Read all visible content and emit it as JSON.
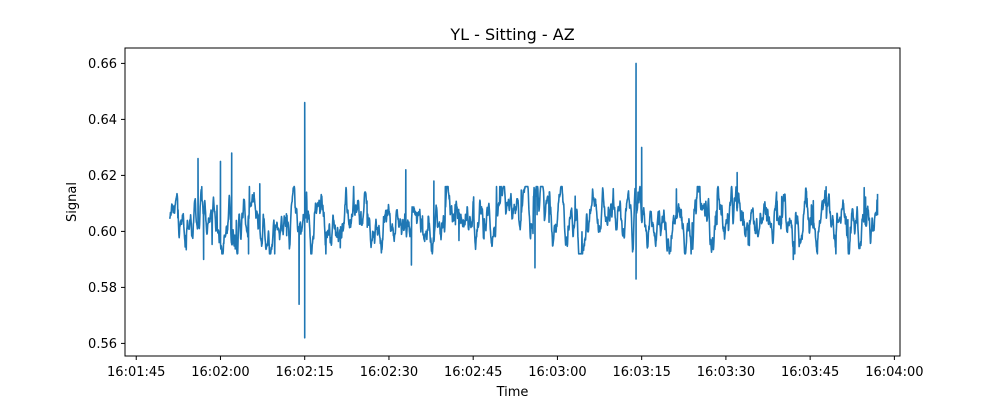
{
  "chart_data": {
    "type": "line",
    "title": "YL - Sitting - AZ",
    "xlabel": "Time",
    "ylabel": "Signal",
    "x_tick_labels": [
      "16:01:45",
      "16:02:00",
      "16:02:15",
      "16:02:30",
      "16:02:45",
      "16:03:00",
      "16:03:15",
      "16:03:30",
      "16:03:45",
      "16:04:00"
    ],
    "y_tick_labels": [
      "0.56",
      "0.58",
      "0.60",
      "0.62",
      "0.64",
      "0.66"
    ],
    "y_ticks": [
      0.56,
      0.58,
      0.6,
      0.62,
      0.64,
      0.66
    ],
    "xlim": [
      "16:01:43",
      "16:04:01"
    ],
    "ylim": [
      0.5555,
      0.6655
    ],
    "grid": false,
    "series": [
      {
        "color": "#1f77b4",
        "x_start": "16:01:51",
        "x_end": "16:03:57",
        "baseline": 0.604,
        "typical_range": [
          0.596,
          0.612
        ],
        "x": [
          "16:01:51",
          "16:01:56",
          "16:01:57",
          "16:02:00",
          "16:02:02",
          "16:02:05",
          "16:02:07",
          "16:02:14",
          "16:02:15",
          "16:02:15",
          "16:02:33",
          "16:02:34",
          "16:02:38",
          "16:02:56",
          "16:03:14",
          "16:03:14",
          "16:03:15",
          "16:03:32",
          "16:03:42",
          "16:03:57"
        ],
        "values": [
          0.605,
          0.626,
          0.59,
          0.625,
          0.628,
          0.592,
          0.617,
          0.574,
          0.562,
          0.646,
          0.622,
          0.588,
          0.618,
          0.587,
          0.66,
          0.583,
          0.63,
          0.621,
          0.59,
          0.606
        ]
      }
    ]
  }
}
